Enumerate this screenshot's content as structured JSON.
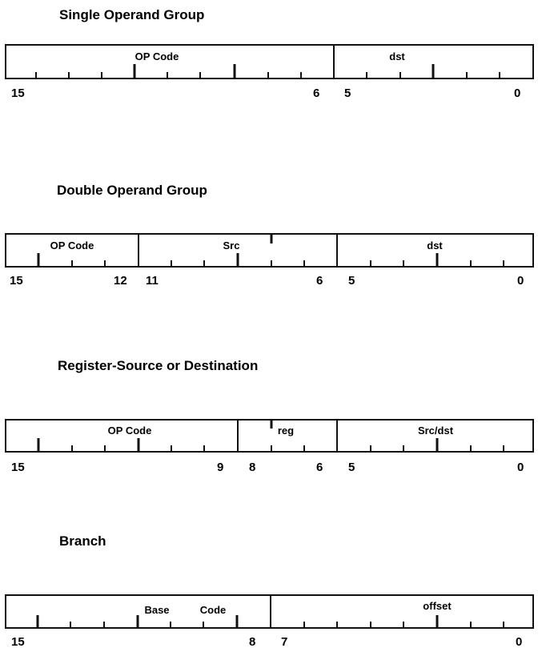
{
  "groups": [
    {
      "title": "Single Operand Group",
      "fields": [
        "OP Code",
        "dst"
      ],
      "bit_numbers": [
        "15",
        "6",
        "5",
        "0"
      ]
    },
    {
      "title": "Double Operand Group",
      "fields": [
        "OP Code",
        "Src",
        "dst"
      ],
      "bit_numbers": [
        "15",
        "12",
        "11",
        "6",
        "5",
        "0"
      ]
    },
    {
      "title": "Register-Source or Destination",
      "fields": [
        "OP Code",
        "reg",
        "Src/dst"
      ],
      "bit_numbers": [
        "15",
        "9",
        "8",
        "6",
        "5",
        "0"
      ]
    },
    {
      "title": "Branch",
      "fields": [
        "Base",
        "Code",
        "offset"
      ],
      "bit_numbers": [
        "15",
        "8",
        "7",
        "0"
      ]
    }
  ]
}
